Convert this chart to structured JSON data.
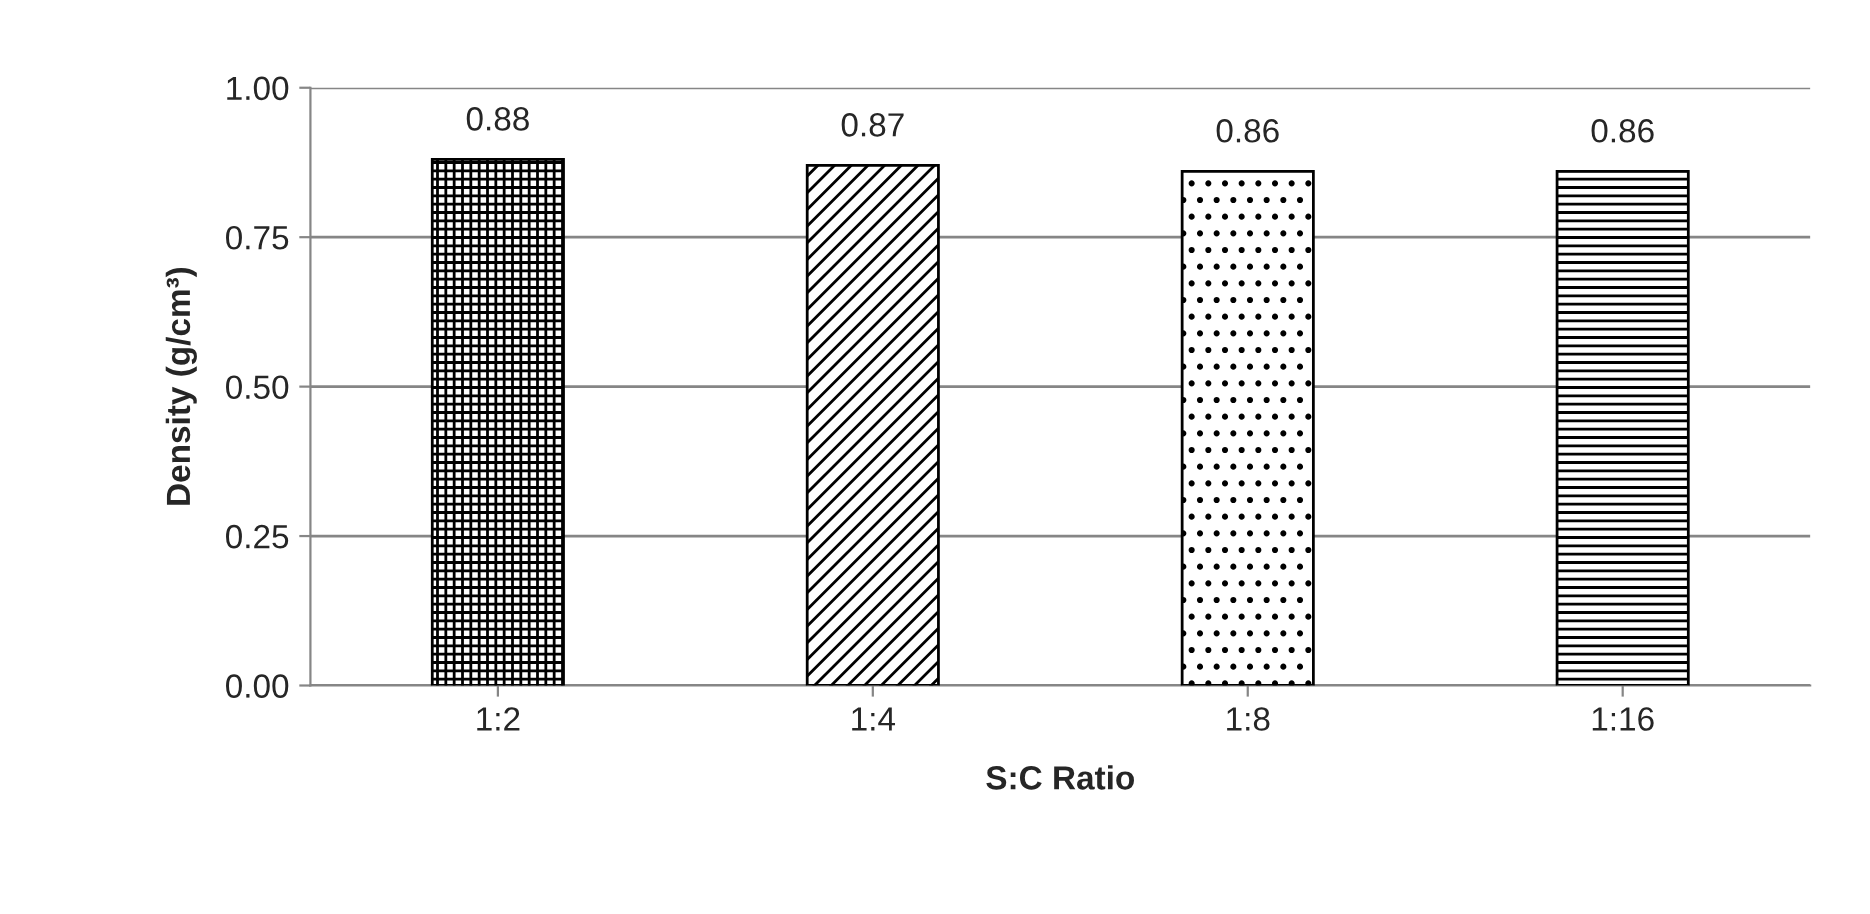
{
  "chart_data": {
    "type": "bar",
    "xlabel": "S:C Ratio",
    "ylabel": "Density (g/cm³)",
    "categories": [
      "1:2",
      "1:4",
      "1:8",
      "1:16"
    ],
    "values": [
      0.88,
      0.87,
      0.86,
      0.86
    ],
    "color": "#000000",
    "ylim": [
      0,
      1
    ],
    "yticks": [
      {
        "value": 0,
        "label": "0.00"
      },
      {
        "value": 0.25,
        "label": "0.25"
      },
      {
        "value": 0.5,
        "label": "0.50"
      },
      {
        "value": 0.75,
        "label": "0.75"
      },
      {
        "value": 1,
        "label": "1.00"
      }
    ],
    "grid": "y",
    "data_labels": true
  }
}
